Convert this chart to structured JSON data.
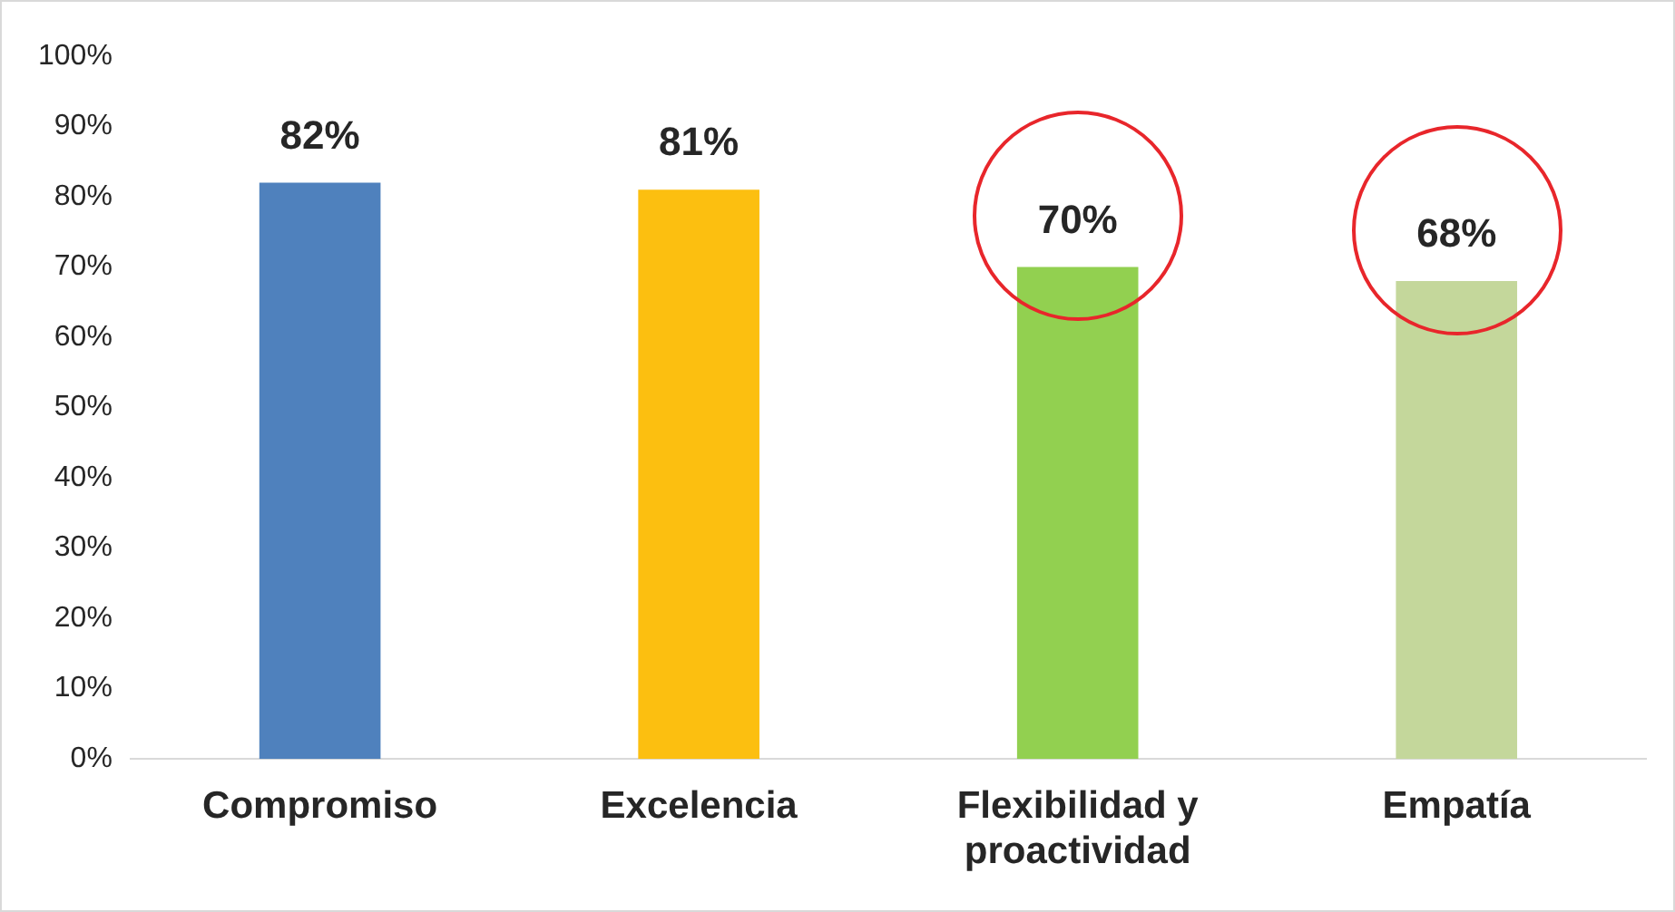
{
  "chart_data": {
    "type": "bar",
    "categories": [
      "Compromiso",
      "Excelencia",
      "Flexibilidad y proactividad",
      "Empatía"
    ],
    "values": [
      82,
      81,
      70,
      68
    ],
    "colors": [
      "#4f81bd",
      "#fcbf10",
      "#92d050",
      "#c4d79b"
    ],
    "value_labels": [
      "82%",
      "81%",
      "70%",
      "68%"
    ],
    "ylim": [
      0,
      100
    ],
    "yticks": [
      {
        "value": 0,
        "label": "0%"
      },
      {
        "value": 10,
        "label": "10%"
      },
      {
        "value": 20,
        "label": "20%"
      },
      {
        "value": 30,
        "label": "30%"
      },
      {
        "value": 40,
        "label": "40%"
      },
      {
        "value": 50,
        "label": "50%"
      },
      {
        "value": 60,
        "label": "60%"
      },
      {
        "value": 70,
        "label": "70%"
      },
      {
        "value": 80,
        "label": "80%"
      },
      {
        "value": 90,
        "label": "90%"
      },
      {
        "value": 100,
        "label": "100%"
      }
    ],
    "grid": false,
    "legend": false
  }
}
